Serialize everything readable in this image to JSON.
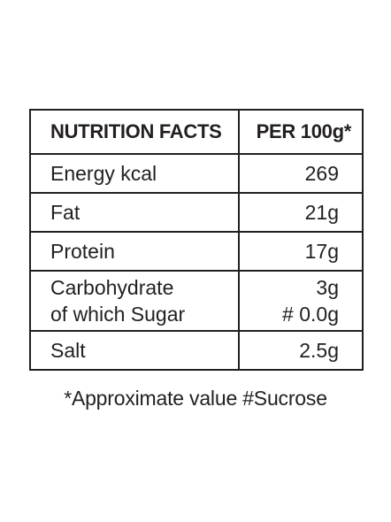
{
  "table": {
    "header": {
      "label": "NUTRITION FACTS",
      "value": "PER 100g*"
    },
    "rows": [
      {
        "label": [
          "Energy kcal"
        ],
        "value": [
          "269"
        ]
      },
      {
        "label": [
          "Fat"
        ],
        "value": [
          "21g"
        ]
      },
      {
        "label": [
          "Protein"
        ],
        "value": [
          "17g"
        ]
      },
      {
        "label": [
          "Carbohydrate",
          "of which Sugar"
        ],
        "value": [
          "3g",
          "# 0.0g"
        ]
      },
      {
        "label": [
          "Salt"
        ],
        "value": [
          "2.5g"
        ]
      }
    ]
  },
  "footnote": "*Approximate value #Sucrose"
}
